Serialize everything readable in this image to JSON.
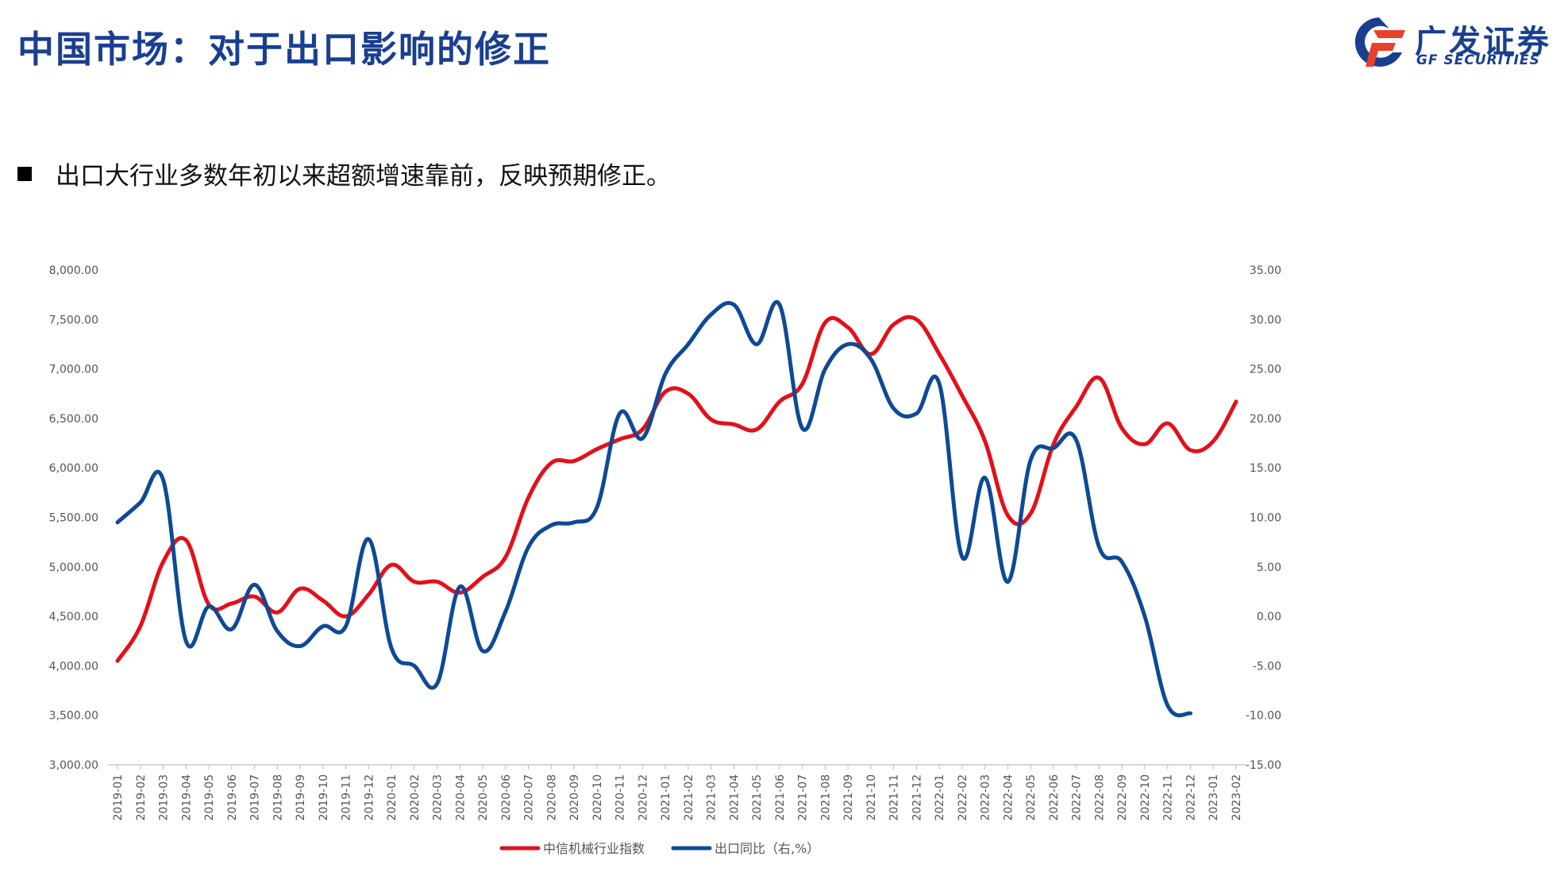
{
  "slide": {
    "title": "中国市场：对于出口影响的修正",
    "bullet": "出口大行业多数年初以来超额增速靠前，反映预期修正。"
  },
  "logo": {
    "cn": "广发证券",
    "en": "GF SECURITIES"
  },
  "colors": {
    "title": "#1a3f91",
    "series_red": "#e3101a",
    "series_blue": "#0e4a94",
    "logo_orange": "#e8402a"
  },
  "chart_data": {
    "type": "line",
    "title": "",
    "x": [
      "2019-01",
      "2019-02",
      "2019-03",
      "2019-04",
      "2019-05",
      "2019-06",
      "2019-07",
      "2019-08",
      "2019-09",
      "2019-10",
      "2019-11",
      "2019-12",
      "2020-01",
      "2020-02",
      "2020-03",
      "2020-04",
      "2020-05",
      "2020-06",
      "2020-07",
      "2020-08",
      "2020-09",
      "2020-10",
      "2020-11",
      "2020-12",
      "2021-01",
      "2021-02",
      "2021-03",
      "2021-04",
      "2021-05",
      "2021-06",
      "2021-07",
      "2021-08",
      "2021-09",
      "2021-10",
      "2021-11",
      "2021-12",
      "2022-01",
      "2022-02",
      "2022-03",
      "2022-04",
      "2022-05",
      "2022-06",
      "2022-07",
      "2022-08",
      "2022-09",
      "2022-10",
      "2022-11",
      "2022-12",
      "2023-01",
      "2023-02"
    ],
    "series": [
      {
        "name": "中信机械行业指数",
        "axis": "left",
        "color": "#e3101a",
        "values": [
          4050,
          4400,
          5050,
          5270,
          4620,
          4630,
          4700,
          4540,
          4780,
          4660,
          4500,
          4720,
          5020,
          4850,
          4850,
          4740,
          4900,
          5100,
          5700,
          6050,
          6070,
          6190,
          6290,
          6390,
          6770,
          6750,
          6490,
          6440,
          6390,
          6670,
          6850,
          7470,
          7420,
          7150,
          7450,
          7500,
          7150,
          6730,
          6270,
          5520,
          5540,
          6240,
          6620,
          6910,
          6400,
          6240,
          6450,
          6180,
          6270,
          6670
        ]
      },
      {
        "name": "出口同比（右,%）",
        "axis": "right",
        "color": "#0e4a94",
        "values": [
          9.5,
          11.5,
          13.8,
          -2.5,
          1.0,
          -1.3,
          3.2,
          -1.5,
          -3.0,
          -1.0,
          -1.0,
          7.8,
          -3.2,
          -5.0,
          -6.8,
          3.0,
          -3.5,
          0.5,
          7.0,
          9.2,
          9.5,
          11.0,
          20.5,
          18.0,
          24.5,
          27.5,
          30.5,
          31.5,
          27.5,
          31.5,
          19.0,
          25.0,
          27.5,
          26.0,
          21.0,
          20.5,
          23.5,
          6.0,
          14.0,
          3.5,
          15.8,
          17.0,
          17.8,
          7.0,
          5.5,
          0.0,
          -9.0,
          -9.8,
          null,
          null
        ]
      }
    ],
    "axes": {
      "left": {
        "ylim": [
          3000,
          8000
        ],
        "ticks": [
          "3,000.00",
          "3,500.00",
          "4,000.00",
          "4,500.00",
          "5,000.00",
          "5,500.00",
          "6,000.00",
          "6,500.00",
          "7,000.00",
          "7,500.00",
          "8,000.00"
        ]
      },
      "right": {
        "ylim": [
          -15,
          35
        ],
        "ticks": [
          "-15.00",
          "-10.00",
          "-5.00",
          "0.00",
          "5.00",
          "10.00",
          "15.00",
          "20.00",
          "25.00",
          "30.00",
          "35.00"
        ]
      }
    },
    "legend": {
      "placement": "bottom-center",
      "items": [
        "中信机械行业指数",
        "出口同比（右,%）"
      ]
    },
    "grid": false
  }
}
